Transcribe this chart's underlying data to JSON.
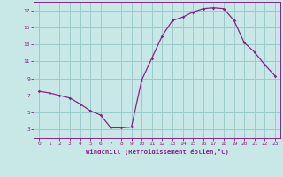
{
  "x": [
    0,
    1,
    2,
    3,
    4,
    5,
    6,
    7,
    8,
    9,
    10,
    11,
    12,
    13,
    14,
    15,
    16,
    17,
    18,
    19,
    20,
    21,
    22,
    23
  ],
  "y": [
    7.5,
    7.3,
    7.0,
    6.7,
    6.0,
    5.2,
    4.7,
    3.2,
    3.2,
    3.3,
    8.8,
    11.4,
    14.0,
    15.8,
    16.2,
    16.8,
    17.2,
    17.3,
    17.2,
    15.8,
    13.2,
    12.1,
    10.6,
    9.3
  ],
  "line_color": "#882288",
  "marker": "D",
  "marker_size": 1.8,
  "bg_color": "#c8e8e8",
  "grid_color": "#99cccc",
  "xlabel": "Windchill (Refroidissement éolien,°C)",
  "xlabel_color": "#882288",
  "tick_color": "#882288",
  "axis_color": "#882288",
  "ylim": [
    2.0,
    18.0
  ],
  "xlim": [
    -0.5,
    23.5
  ],
  "yticks": [
    3,
    5,
    7,
    9,
    11,
    13,
    15,
    17
  ],
  "xticks": [
    0,
    1,
    2,
    3,
    4,
    5,
    6,
    7,
    8,
    9,
    10,
    11,
    12,
    13,
    14,
    15,
    16,
    17,
    18,
    19,
    20,
    21,
    22,
    23
  ],
  "spine_color": "#882288"
}
